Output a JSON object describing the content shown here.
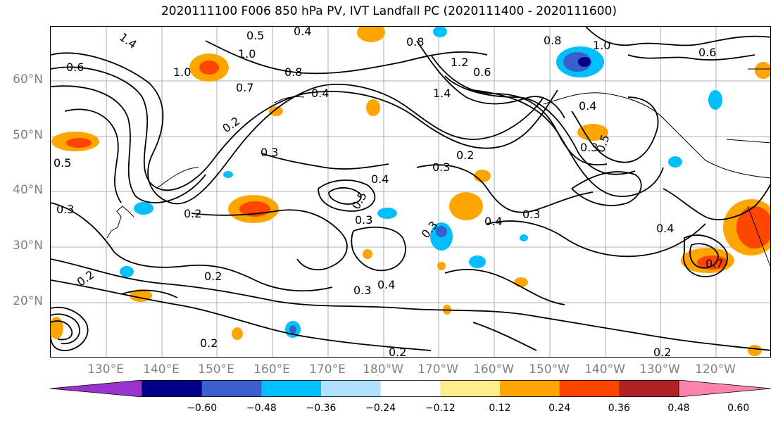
{
  "title": "2020111100 F006 850 hPa PV, IVT Landfall PC (2020111400 - 2020111600)",
  "lat_labels": [
    "60°N",
    "50°N",
    "40°N",
    "30°N",
    "20°N"
  ],
  "lon_labels": [
    "130°E",
    "140°E",
    "150°E",
    "160°E",
    "170°E",
    "180°W",
    "170°W",
    "160°W",
    "150°W",
    "140°W",
    "130°W",
    "120°W"
  ],
  "contour_labels": [
    "1.4",
    "0.5",
    "0.4",
    "0.8",
    "1.0",
    "0.6",
    "1.0",
    "0.7",
    "0.8",
    "1.2",
    "1.4",
    "0.4",
    "0.2",
    "0.3",
    "0.5",
    "0.2",
    "0.3",
    "0.4",
    "0.3",
    "0.5",
    "0.2",
    "0.3",
    "0.4",
    "0.3",
    "0.7",
    "0.2",
    "0.4",
    "0.3",
    "0.2",
    "0.3",
    "0.2",
    "0.2",
    "0.5",
    "0.6",
    "1.0",
    "0.6",
    "0.8",
    "0.4",
    "0.4",
    "0.3",
    "0.2"
  ],
  "colorbar": {
    "colors": [
      "#9a32cd",
      "#00008b",
      "#3a5fcd",
      "#00bfff",
      "#b0e2ff",
      "#ffffff",
      "#ffec8b",
      "#ffa500",
      "#ff4500",
      "#b22222",
      "#ff83a8"
    ],
    "tick_labels": [
      "−0.60",
      "−0.48",
      "−0.36",
      "−0.24",
      "−0.12",
      "0.12",
      "0.24",
      "0.36",
      "0.48",
      "0.60"
    ],
    "tick_values": [
      -0.6,
      -0.48,
      -0.36,
      -0.24,
      -0.12,
      0.12,
      0.24,
      0.36,
      0.48,
      0.6
    ]
  },
  "colors": {
    "positive": "#ffa500",
    "strong_positive": "#ff4500",
    "negative": "#00bfff",
    "strong_negative": "#3a5fcd"
  }
}
